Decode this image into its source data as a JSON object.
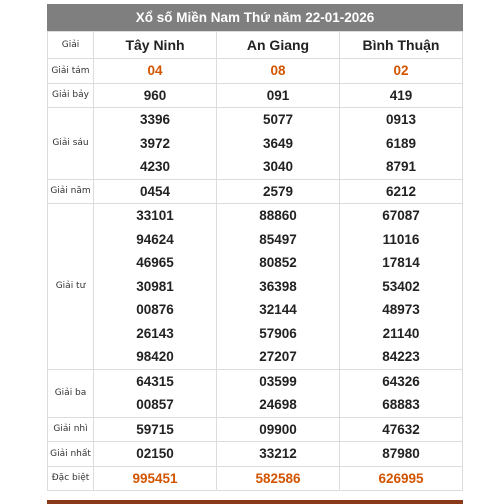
{
  "title": "Xổ số Miền Nam Thứ năm 22-01-2026",
  "header": {
    "label": "Giải",
    "provinces": [
      "Tây Ninh",
      "An Giang",
      "Bình Thuận"
    ]
  },
  "prizes": [
    {
      "label": "Giải tám",
      "highlight": true,
      "values": [
        [
          "04"
        ],
        [
          "08"
        ],
        [
          "02"
        ]
      ]
    },
    {
      "label": "Giải bảy",
      "values": [
        [
          "960"
        ],
        [
          "091"
        ],
        [
          "419"
        ]
      ]
    },
    {
      "label": "Giải sáu",
      "values": [
        [
          "3396",
          "3972",
          "4230"
        ],
        [
          "5077",
          "3649",
          "3040"
        ],
        [
          "0913",
          "6189",
          "8791"
        ]
      ]
    },
    {
      "label": "Giải năm",
      "values": [
        [
          "0454"
        ],
        [
          "2579"
        ],
        [
          "6212"
        ]
      ]
    },
    {
      "label": "Giải tư",
      "values": [
        [
          "33101",
          "94624",
          "46965",
          "30981",
          "00876",
          "26143",
          "98420"
        ],
        [
          "88860",
          "85497",
          "80852",
          "36398",
          "32144",
          "57906",
          "27207"
        ],
        [
          "67087",
          "11016",
          "17814",
          "53402",
          "48973",
          "21140",
          "84223"
        ]
      ]
    },
    {
      "label": "Giải ba",
      "values": [
        [
          "64315",
          "00857"
        ],
        [
          "03599",
          "24698"
        ],
        [
          "64326",
          "68883"
        ]
      ]
    },
    {
      "label": "Giải nhì",
      "values": [
        [
          "59715"
        ],
        [
          "09900"
        ],
        [
          "47632"
        ]
      ]
    },
    {
      "label": "Giải nhất",
      "values": [
        [
          "02150"
        ],
        [
          "33212"
        ],
        [
          "87980"
        ]
      ]
    },
    {
      "label": "Đặc biệt",
      "highlight": true,
      "values": [
        [
          "995451"
        ],
        [
          "582586"
        ],
        [
          "626995"
        ]
      ]
    }
  ],
  "colors": {
    "header_bg": "#7f7f7f",
    "highlight": "#d35400"
  }
}
